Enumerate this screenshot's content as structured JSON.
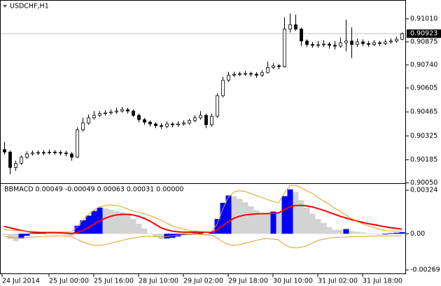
{
  "chart_data": [
    {
      "type": "candlestick",
      "title": "USDCHF,H1",
      "categories": [
        "24 Jul 2014",
        null,
        null,
        null,
        null,
        null,
        null,
        null,
        "25 Jul 00:00",
        null,
        null,
        null,
        null,
        null,
        null,
        null,
        "25 Jul 16:00",
        null,
        null,
        null,
        null,
        null,
        null,
        null,
        "28 Jul 10:00",
        null,
        null,
        null,
        null,
        null,
        null,
        null,
        "29 Jul 02:00",
        null,
        null,
        null,
        null,
        null,
        null,
        null,
        "29 Jul 18:00",
        null,
        null,
        null,
        null,
        null,
        null,
        null,
        "30 Jul 10:00",
        null,
        null,
        null,
        null,
        null,
        null,
        null,
        "31 Jul 02:00",
        null,
        null,
        null,
        null,
        null,
        null,
        null,
        "31 Jul 18:00",
        null,
        null,
        null,
        null,
        null,
        null,
        null
      ],
      "open": [
        0.90245,
        0.9023,
        0.9014,
        0.90165,
        0.902,
        0.9022,
        0.90225,
        0.90228,
        0.90226,
        0.9023,
        0.90228,
        0.90225,
        0.9022,
        0.902,
        0.9036,
        0.904,
        0.9043,
        0.90445,
        0.90455,
        0.9046,
        0.90465,
        0.9047,
        0.90478,
        0.9047,
        0.90445,
        0.9042,
        0.90405,
        0.90395,
        0.90385,
        0.9038,
        0.90395,
        0.9039,
        0.90395,
        0.904,
        0.90415,
        0.9043,
        0.90445,
        0.9039,
        0.9044,
        0.9056,
        0.9065,
        0.9068,
        0.90685,
        0.90688,
        0.9069,
        0.90686,
        0.9068,
        0.90695,
        0.90725,
        0.90735,
        0.9073,
        0.9095,
        0.90975,
        0.9095,
        0.9088,
        0.9086,
        0.90855,
        0.90858,
        0.90862,
        0.90855,
        0.9085,
        0.9087,
        0.9088,
        0.9086,
        0.90875,
        0.90865,
        0.9086,
        0.9087,
        0.90865,
        0.90875,
        0.9088,
        0.9089
      ],
      "high": [
        0.9029,
        0.9024,
        0.9018,
        0.9021,
        0.90235,
        0.9024,
        0.9024,
        0.90242,
        0.90245,
        0.90242,
        0.9024,
        0.90238,
        0.9023,
        0.90375,
        0.9043,
        0.9045,
        0.9047,
        0.9047,
        0.90475,
        0.9048,
        0.9049,
        0.90495,
        0.9049,
        0.9048,
        0.90455,
        0.9043,
        0.90415,
        0.90405,
        0.904,
        0.9041,
        0.90405,
        0.9041,
        0.90415,
        0.90425,
        0.90445,
        0.9047,
        0.90455,
        0.90455,
        0.90575,
        0.9067,
        0.907,
        0.907,
        0.907,
        0.90705,
        0.907,
        0.90698,
        0.9071,
        0.9076,
        0.9075,
        0.90745,
        0.9102,
        0.9104,
        0.91035,
        0.9096,
        0.9089,
        0.90875,
        0.9088,
        0.90885,
        0.90875,
        0.9088,
        0.909,
        0.91005,
        0.9096,
        0.90895,
        0.9089,
        0.9088,
        0.90885,
        0.9088,
        0.9089,
        0.90895,
        0.90905,
        0.9093
      ],
      "low": [
        0.90215,
        0.901,
        0.9012,
        0.90155,
        0.9019,
        0.9021,
        0.90212,
        0.90212,
        0.90215,
        0.90215,
        0.9021,
        0.90205,
        0.9018,
        0.90195,
        0.9035,
        0.9039,
        0.9042,
        0.90435,
        0.90445,
        0.9045,
        0.90455,
        0.9046,
        0.90455,
        0.90435,
        0.90405,
        0.9039,
        0.9038,
        0.9037,
        0.90365,
        0.9037,
        0.90375,
        0.9038,
        0.90385,
        0.9039,
        0.90405,
        0.9042,
        0.9037,
        0.9038,
        0.9043,
        0.9055,
        0.9064,
        0.9067,
        0.90675,
        0.90678,
        0.90672,
        0.90665,
        0.9067,
        0.9069,
        0.90715,
        0.90715,
        0.90725,
        0.9093,
        0.9094,
        0.9085,
        0.90845,
        0.9084,
        0.9084,
        0.90845,
        0.90835,
        0.9083,
        0.9084,
        0.9082,
        0.9078,
        0.90845,
        0.9085,
        0.90845,
        0.9085,
        0.9085,
        0.90855,
        0.90865,
        0.9087,
        0.90885
      ],
      "close": [
        0.9023,
        0.9014,
        0.90165,
        0.902,
        0.9022,
        0.90225,
        0.90228,
        0.90226,
        0.9023,
        0.90228,
        0.90225,
        0.9022,
        0.902,
        0.9036,
        0.904,
        0.9043,
        0.90445,
        0.90455,
        0.9046,
        0.90465,
        0.9047,
        0.90478,
        0.9047,
        0.90445,
        0.9042,
        0.90405,
        0.90395,
        0.90385,
        0.9038,
        0.90395,
        0.9039,
        0.90395,
        0.904,
        0.90415,
        0.9043,
        0.90445,
        0.9039,
        0.9044,
        0.9056,
        0.9065,
        0.9068,
        0.90685,
        0.90688,
        0.9069,
        0.90686,
        0.9068,
        0.90695,
        0.90725,
        0.90735,
        0.9073,
        0.9095,
        0.90975,
        0.9095,
        0.9088,
        0.9086,
        0.90855,
        0.90858,
        0.90862,
        0.90855,
        0.9085,
        0.9087,
        0.9088,
        0.9086,
        0.90875,
        0.90865,
        0.9086,
        0.9087,
        0.90865,
        0.90875,
        0.9088,
        0.9089,
        0.90923
      ],
      "up_color": "#ffffff",
      "down_color": "#000000",
      "current_price": 0.90923,
      "ylim": [
        0.90048,
        0.9112
      ],
      "yticks": [
        {
          "value": 0.9101,
          "label": "0.91010"
        },
        0.90875,
        {
          "value": 0.9074,
          "label": "0.90740"
        },
        0.90605,
        0.90465,
        0.90325,
        0.90185,
        {
          "value": 0.9005,
          "label": "0.90050"
        }
      ]
    },
    {
      "type": "macd",
      "title": "BBMACD 0.00049 -0.00049 0.00063 0.00031 0.00000",
      "values": [
        -0.0001,
        -0.0004,
        -0.00055,
        -0.00035,
        -0.00015,
        5e-05,
        0.0001,
        0.00012,
        8e-05,
        6e-05,
        2e-05,
        -5e-05,
        -0.00015,
        0.0006,
        0.001,
        0.00135,
        0.0017,
        0.00195,
        0.0019,
        0.0018,
        0.0017,
        0.0016,
        0.0014,
        0.0011,
        0.00075,
        0.0004,
        5e-05,
        -0.00025,
        -0.0004,
        -0.00035,
        -0.0003,
        -0.0002,
        -0.0001,
        0,
        5e-05,
        0.00015,
        -0.0001,
        0.0001,
        0.0011,
        0.0023,
        0.00285,
        0.0028,
        0.0026,
        0.00235,
        0.00205,
        0.00175,
        0.0015,
        0.0015,
        0.00165,
        0.0015,
        0.0028,
        0.0033,
        0.0031,
        0.0025,
        0.00195,
        0.0015,
        0.0011,
        0.0008,
        0.0005,
        0.0003,
        0.0003,
        0.00035,
        0.0002,
        0.00015,
        0.0001,
        5e-05,
        -5e-05,
        -8e-05,
        -5e-05,
        5e-05,
        8e-05,
        0.00012
      ],
      "up_color": "#0000ff",
      "down_color": "#d3d3d3",
      "series": [
        {
          "color": "#ff0000",
          "values": [
            0.00055,
            0.00045,
            0.00035,
            0.00025,
            0.00018,
            0.00012,
            0.0001,
            8e-05,
            8e-05,
            8e-05,
            7e-05,
            5e-05,
            2e-05,
            0.0001,
            0.00025,
            0.00045,
            0.0007,
            0.00095,
            0.00115,
            0.0013,
            0.0014,
            0.00145,
            0.00145,
            0.0014,
            0.0013,
            0.00115,
            0.00095,
            0.0007,
            0.00045,
            0.0003,
            0.0002,
            0.00015,
            0.00012,
            0.00012,
            0.00012,
            0.00013,
            0.00012,
            0.00012,
            0.0003,
            0.0006,
            0.0009,
            0.00115,
            0.0013,
            0.0014,
            0.00145,
            0.00148,
            0.0015,
            0.0015,
            0.00152,
            0.00155,
            0.0018,
            0.002,
            0.0021,
            0.00212,
            0.00208,
            0.002,
            0.00188,
            0.00175,
            0.0016,
            0.00145,
            0.0013,
            0.00118,
            0.00105,
            0.00095,
            0.00085,
            0.00075,
            0.00068,
            0.0006,
            0.00052,
            0.00045,
            0.0004,
            0.00035
          ]
        },
        {
          "color": "#d9a21b",
          "values": [
            0.0003,
            0.00028,
            0.00025,
            0.00022,
            0.0002,
            0.00018,
            0.00016,
            0.00015,
            0.00015,
            0.00014,
            0.00014,
            0.00013,
            0.00013,
            0.0005,
            0.001,
            0.0014,
            0.00175,
            0.002,
            0.0021,
            0.00215,
            0.0021,
            0.002,
            0.00185,
            0.0017,
            0.0016,
            0.0015,
            0.00135,
            0.0012,
            0.001,
            0.0008,
            0.0006,
            0.00045,
            0.00035,
            0.00025,
            0.0002,
            0.00018,
            0.00016,
            0.00016,
            0.0007,
            0.0018,
            0.0027,
            0.0031,
            0.0032,
            0.00315,
            0.003,
            0.00285,
            0.0027,
            0.00255,
            0.0024,
            0.0023,
            0.003,
            0.0036,
            0.0036,
            0.00345,
            0.0032,
            0.003,
            0.0027,
            0.00245,
            0.0022,
            0.0019,
            0.00165,
            0.0014,
            0.00115,
            0.0009,
            0.00075,
            0.0006,
            0.00045,
            0.00035,
            0.00025,
            0.00022,
            0.0002,
            0.0002
          ]
        },
        {
          "color": "#d9a21b",
          "values": [
            -0.0002,
            -0.00025,
            -0.0003,
            -0.0003,
            -0.00028,
            -0.00025,
            -0.00022,
            -0.0002,
            -0.00018,
            -0.00016,
            -0.00015,
            -0.00015,
            -0.0002,
            -0.0004,
            -0.0006,
            -0.00075,
            -0.00085,
            -0.00085,
            -0.0008,
            -0.0007,
            -0.0006,
            -0.0005,
            -0.0004,
            -0.00032,
            -0.00025,
            -0.0002,
            -0.00018,
            -0.0002,
            -0.00025,
            -0.0002,
            -0.00015,
            -0.0001,
            -8e-05,
            -6e-05,
            -5e-05,
            -5e-05,
            -0.0001,
            -0.0001,
            -0.0003,
            -0.0006,
            -0.0008,
            -0.00085,
            -0.0008,
            -0.0007,
            -0.0006,
            -0.0005,
            -0.0004,
            -0.00035,
            -0.0004,
            -0.00045,
            -0.0008,
            -0.001,
            -0.00105,
            -0.001,
            -0.0009,
            -0.0007,
            -0.0005,
            -0.0004,
            -0.00032,
            -0.00028,
            -0.00025,
            -0.00024,
            -0.00022,
            -0.0002,
            -0.0002,
            -0.00018,
            -0.00018,
            -0.00016,
            -0.00016,
            -0.00015,
            -0.00015,
            -0.00014
          ]
        }
      ],
      "ylim": [
        -0.003,
        0.00371
      ],
      "yticks": [
        0.00324,
        {
          "value": 0,
          "label": "0.00"
        },
        -0.00269
      ]
    }
  ]
}
